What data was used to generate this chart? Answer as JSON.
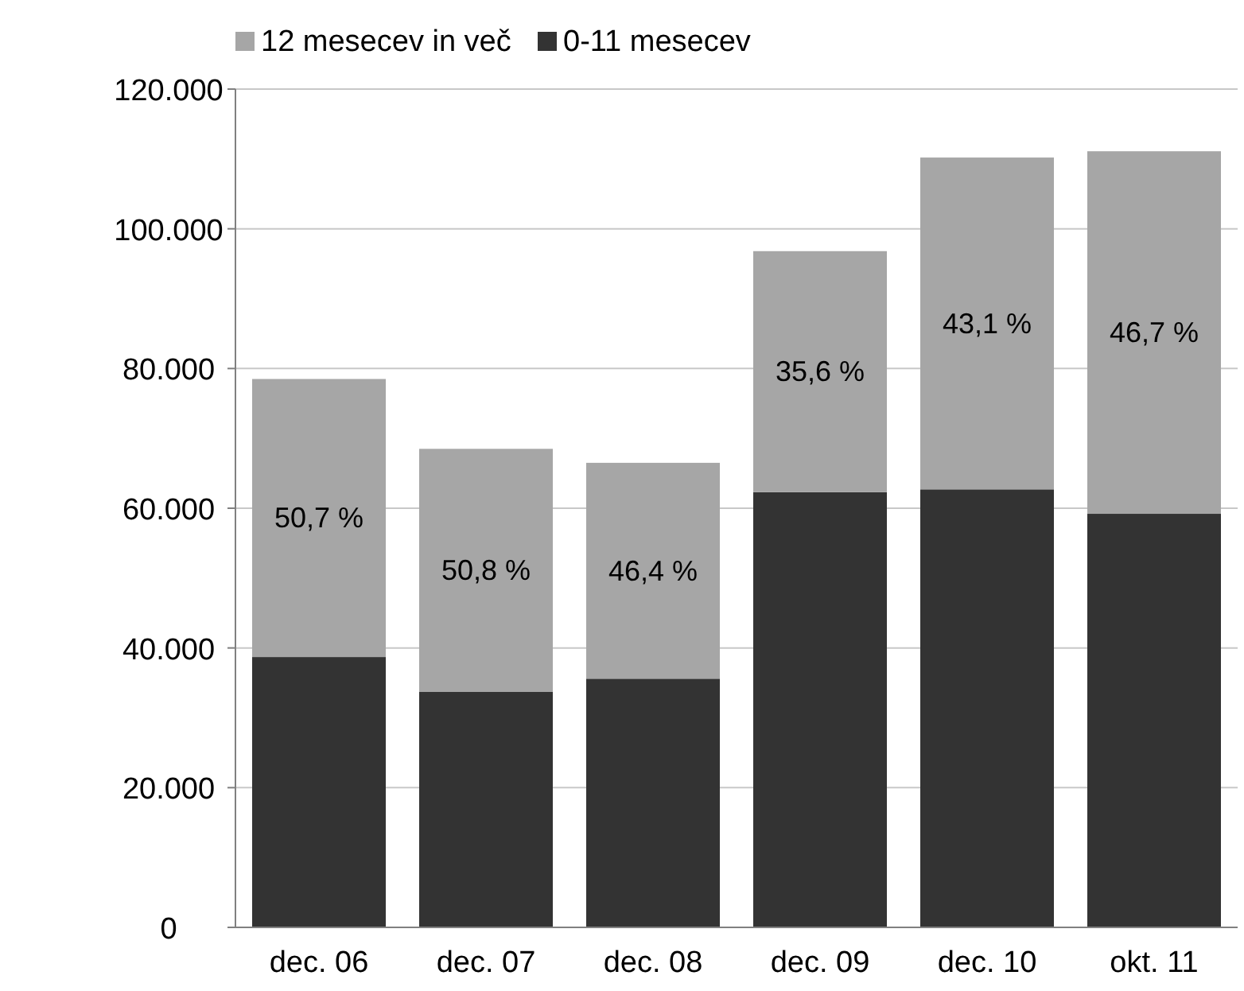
{
  "chart_data": {
    "type": "bar",
    "stacked": true,
    "categories": [
      "dec. 06",
      "dec. 07",
      "dec. 08",
      "dec. 09",
      "dec. 10",
      "okt. 11"
    ],
    "series": [
      {
        "name": "0-11 mesecev",
        "color": "#333333",
        "values": [
          38700,
          33700,
          35600,
          62300,
          62700,
          59200
        ]
      },
      {
        "name": "12 mesecev in več",
        "color": "#a6a6a6",
        "values": [
          39800,
          34800,
          30900,
          34500,
          47500,
          51900
        ]
      }
    ],
    "annotations": [
      "50,7 %",
      "50,8 %",
      "46,4 %",
      "35,6 %",
      "43,1 %",
      "46,7 %"
    ],
    "ylim": [
      0,
      120000
    ],
    "yticks": [
      0,
      {
        "value": 20000,
        "label": "20.000"
      },
      {
        "value": 40000,
        "label": "40.000"
      },
      {
        "value": 60000,
        "label": "60.000"
      },
      {
        "value": 80000,
        "label": "80.000"
      },
      {
        "value": 100000,
        "label": "100.000"
      },
      {
        "value": 120000,
        "label": "120.000"
      }
    ],
    "grid": "y",
    "legend": "top"
  }
}
